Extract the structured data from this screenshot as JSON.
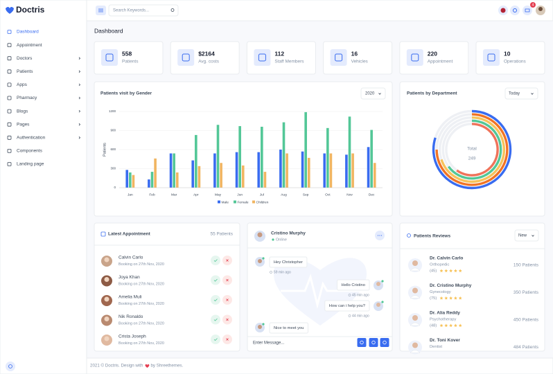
{
  "brand": "Doctris",
  "search_placeholder": "Search Keywords...",
  "notifications": 4,
  "sidebar": [
    {
      "label": "Dashboard",
      "active": true
    },
    {
      "label": "Appointment"
    },
    {
      "label": "Doctors",
      "submenu": true
    },
    {
      "label": "Patients",
      "submenu": true
    },
    {
      "label": "Apps",
      "submenu": true
    },
    {
      "label": "Pharmacy",
      "submenu": true
    },
    {
      "label": "Blogs",
      "submenu": true
    },
    {
      "label": "Pages",
      "submenu": true
    },
    {
      "label": "Authentication",
      "submenu": true
    },
    {
      "label": "Components"
    },
    {
      "label": "Landing page"
    }
  ],
  "page_title": "Dashboard",
  "stats": [
    {
      "value": 558,
      "label": "Patients"
    },
    {
      "value": "$2164",
      "label": "Avg. costs"
    },
    {
      "value": 112,
      "label": "Staff Members"
    },
    {
      "value": 16,
      "label": "Vehicles"
    },
    {
      "value": 220,
      "label": "Appointment"
    },
    {
      "value": 10,
      "label": "Operations"
    }
  ],
  "chart_data": [
    {
      "type": "bar",
      "title": "Patients visit by Gender",
      "filter": "2020",
      "y_label": "Patients",
      "categories": [
        "Jan",
        "Feb",
        "Mar",
        "Apr",
        "May",
        "Jun",
        "Jul",
        "Aug",
        "Sep",
        "Oct",
        "Nov",
        "Dec"
      ],
      "series": [
        {
          "name": "Male",
          "color": "#396cf0",
          "values": [
            280,
            130,
            540,
            430,
            540,
            560,
            560,
            600,
            570,
            540,
            520,
            640
          ]
        },
        {
          "name": "Female",
          "color": "#53c797",
          "values": [
            240,
            250,
            540,
            830,
            990,
            970,
            960,
            1030,
            1190,
            940,
            1120,
            910
          ]
        },
        {
          "name": "Children",
          "color": "#f1b561",
          "values": [
            200,
            460,
            240,
            340,
            390,
            350,
            250,
            540,
            470,
            540,
            540,
            390
          ]
        }
      ],
      "ylim": [
        0,
        1200
      ],
      "yticks": [
        0,
        300,
        600,
        900,
        1200
      ],
      "grid": true,
      "legend": "bottom"
    },
    {
      "type": "radialbar",
      "title": "Patients by Department",
      "filter": "Today",
      "center_label": "Total",
      "total": 249,
      "values": [
        80,
        75,
        70,
        65,
        60
      ],
      "colors": [
        "#396cf0",
        "#f17425",
        "#f7c35b",
        "#53c797",
        "#f0735a"
      ],
      "ylim": [
        0,
        100
      ]
    }
  ],
  "appointments": {
    "title": "Latest Appointment",
    "count": "55 Patients",
    "items": [
      {
        "name": "Calvin Carlo",
        "date": "Booking on 27th Nov, 2020"
      },
      {
        "name": "Joya Khan",
        "date": "Booking on 27th Nov, 2020"
      },
      {
        "name": "Amelia Muli",
        "date": "Booking on 27th Nov, 2020"
      },
      {
        "name": "Nik Ronaldo",
        "date": "Booking on 27th Nov, 2020"
      },
      {
        "name": "Crista Joseph",
        "date": "Booking on 27th Nov, 2020"
      }
    ]
  },
  "chat": {
    "name": "Cristino Murphy",
    "status": "Online",
    "messages": [
      {
        "text": "Hey Christopher",
        "time": "59 min ago",
        "side": "left"
      },
      {
        "text": "Hello Cristino",
        "time": "45 min ago",
        "side": "right"
      },
      {
        "text": "How can i help you?",
        "time": "44 min ago",
        "side": "right"
      },
      {
        "text": "Nice to meet you",
        "side": "left"
      }
    ],
    "input_placeholder": "Enter Message..."
  },
  "reviews": {
    "title": "Patients Reviews",
    "filter": "New",
    "items": [
      {
        "name": "Dr. Calvin Carlo",
        "specialty": "Orthopedic",
        "count": "(45)",
        "patients": "150 Patients"
      },
      {
        "name": "Dr. Cristino Murphy",
        "specialty": "Gynecology",
        "count": "(75)",
        "patients": "350 Patients"
      },
      {
        "name": "Dr. Alia Reddy",
        "specialty": "Psychotherapy",
        "count": "(48)",
        "patients": "450 Patients"
      },
      {
        "name": "Dr. Toni Kover",
        "specialty": "Dentist",
        "patients": "484 Patients"
      }
    ]
  },
  "footer": {
    "left": "2021 © Doctris. Design with",
    "right": "by Shreethemes."
  }
}
